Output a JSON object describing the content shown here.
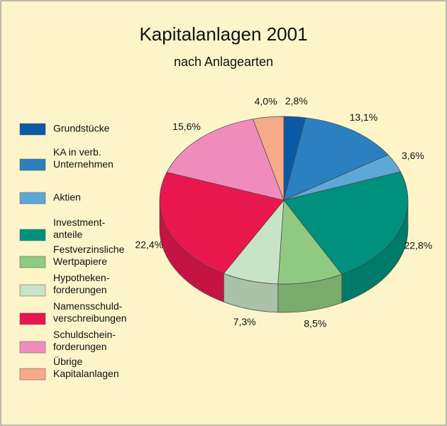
{
  "chart_data": {
    "type": "pie",
    "title": "Kapitalanlagen 2001",
    "subtitle": "nach Anlagearten",
    "categories": [
      "Grundstücke",
      "KA in verb.\nUnternehmen",
      "Aktien",
      "Investment-\nanteile",
      "Festverzinsliche\nWertpapiere",
      "Hypotheken-\nforderungen",
      "Namensschuld-\nverschreibungen",
      "Schuldschein-\nforderungen",
      "Übrige\nKapitalanlagen"
    ],
    "values": [
      2.8,
      13.1,
      3.6,
      22.8,
      8.5,
      7.3,
      22.4,
      15.6,
      4.0
    ],
    "value_labels": [
      "2,8%",
      "13,1%",
      "3,6%",
      "22,8%",
      "8,5%",
      "7,3%",
      "22,4%",
      "15,6%",
      "4,0%"
    ],
    "colors": [
      "#0b5aa6",
      "#2a80c0",
      "#5ea8d6",
      "#00907e",
      "#8fca80",
      "#c8e4c6",
      "#e8184f",
      "#f08cbc",
      "#f6aa8a"
    ]
  }
}
